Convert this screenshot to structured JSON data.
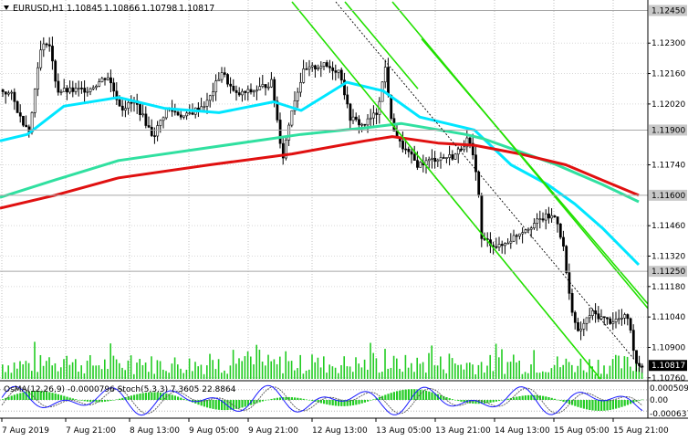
{
  "chart_data": {
    "type": "candlestick",
    "symbol": "EURUSD,H1",
    "ohlc": [
      "1.10845",
      "1.10866",
      "1.10798",
      "1.10817"
    ],
    "last_price": 1.10817,
    "last_price_label": "1.10817",
    "y_range": [
      1.10755,
      1.1249
    ],
    "y_ticks": [
      "1.12300",
      "1.12160",
      "1.12020",
      "1.11740",
      "1.11460",
      "1.11320",
      "1.11180",
      "1.11040",
      "1.10900",
      "1.10760"
    ],
    "level_lines": [
      {
        "label": "1.12450",
        "value": 1.1245
      },
      {
        "label": "1.11900",
        "value": 1.119
      },
      {
        "label": "1.11600",
        "value": 1.116
      },
      {
        "label": "1.11250",
        "value": 1.1125
      }
    ],
    "x_labels": [
      "7 Aug 2019",
      "7 Aug 21:00",
      "8 Aug 13:00",
      "9 Aug 05:00",
      "9 Aug 21:00",
      "12 Aug 13:00",
      "13 Aug 05:00",
      "13 Aug 21:00",
      "14 Aug 13:00",
      "15 Aug 05:00",
      "15 Aug 21:00"
    ],
    "ma_lines": [
      {
        "color": "#00e6ff",
        "points": [
          [
            1.1185,
            0
          ],
          [
            1.1188,
            30
          ],
          [
            1.1201,
            70
          ],
          [
            1.1205,
            130
          ],
          [
            1.12,
            180
          ],
          [
            1.1198,
            240
          ],
          [
            1.1203,
            300
          ],
          [
            1.1199,
            330
          ],
          [
            1.1212,
            380
          ],
          [
            1.1208,
            420
          ],
          [
            1.1196,
            460
          ],
          [
            1.1192,
            500
          ],
          [
            1.119,
            520
          ],
          [
            1.1174,
            560
          ],
          [
            1.1165,
            600
          ],
          [
            1.1156,
            630
          ],
          [
            1.1145,
            660
          ],
          [
            1.1128,
            700
          ]
        ]
      },
      {
        "color": "#30e0a0",
        "points": [
          [
            1.1159,
            0
          ],
          [
            1.1167,
            60
          ],
          [
            1.1176,
            130
          ],
          [
            1.1182,
            230
          ],
          [
            1.1188,
            330
          ],
          [
            1.1191,
            400
          ],
          [
            1.1193,
            440
          ],
          [
            1.1188,
            510
          ],
          [
            1.1186,
            530
          ],
          [
            1.118,
            570
          ],
          [
            1.1174,
            610
          ],
          [
            1.1165,
            660
          ],
          [
            1.1157,
            700
          ]
        ]
      },
      {
        "color": "#e01010",
        "points": [
          [
            1.1154,
            0
          ],
          [
            1.116,
            60
          ],
          [
            1.1168,
            130
          ],
          [
            1.1174,
            230
          ],
          [
            1.1179,
            320
          ],
          [
            1.1185,
            400
          ],
          [
            1.1187,
            430
          ],
          [
            1.1184,
            480
          ],
          [
            1.1183,
            520
          ],
          [
            1.1179,
            570
          ],
          [
            1.1174,
            620
          ],
          [
            1.1167,
            660
          ],
          [
            1.116,
            700
          ]
        ]
      }
    ],
    "channels": [
      {
        "color": "#22e000",
        "p1": [
          320,
          1.1249
        ],
        "p2": [
          658,
          1.10755
        ]
      },
      {
        "color": "#22e000",
        "p1": [
          430,
          1.1249
        ],
        "p2": [
          710,
          1.1108
        ]
      },
      {
        "color": "#22e000",
        "p1": [
          462,
          1.1232
        ],
        "p2": [
          710,
          1.111
        ]
      },
      {
        "color": "#22e000",
        "p1": [
          378,
          1.1249
        ],
        "p2": [
          458,
          1.1209
        ]
      },
      {
        "color": "#000000",
        "dashed": true,
        "p1": [
          368,
          1.1249
        ],
        "p2": [
          704,
          1.108
        ]
      }
    ],
    "indicator": {
      "title": "OsMA(12,26,9) -0.0000796  Stoch(5,3,3) 7.3605 22.8864",
      "right_labels": [
        "0.0005095",
        "0.00",
        "-0.000637"
      ],
      "levels": [
        80,
        20
      ],
      "hist_color": "#22cc22",
      "k_color": "#1a1aff",
      "d_color": "#555555"
    }
  }
}
